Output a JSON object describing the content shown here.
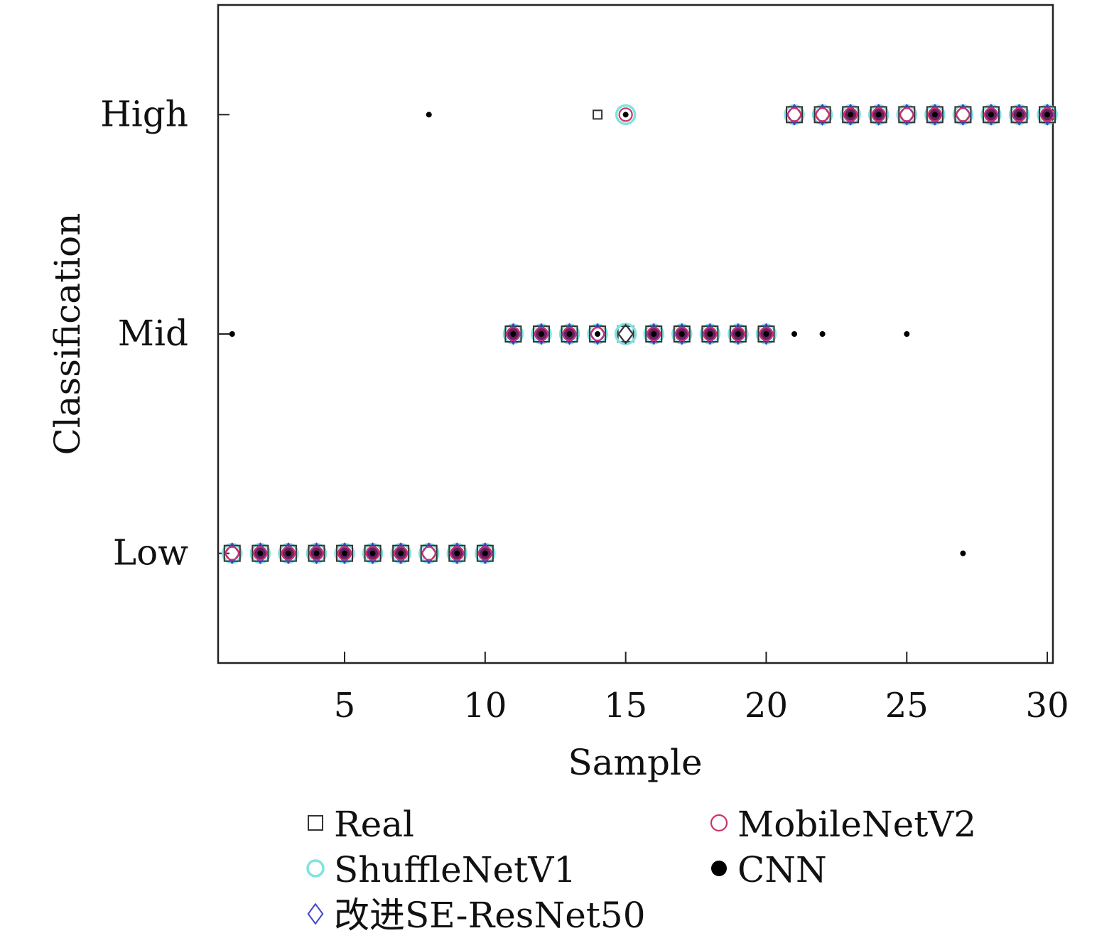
{
  "chart_data": {
    "type": "scatter",
    "xlabel": "Sample",
    "ylabel": "Classification",
    "xlim": [
      0.5,
      30.2
    ],
    "ylim": [
      -0.5,
      2.5
    ],
    "x_ticks": [
      5,
      10,
      15,
      20,
      25,
      30
    ],
    "x_tick_labels": [
      "5",
      "10",
      "15",
      "20",
      "25",
      "30"
    ],
    "y_tick_labels": [
      "Low",
      "Mid",
      "High"
    ],
    "y_tick_values": [
      0,
      1,
      2
    ],
    "grid": false,
    "legend_position": "bottom",
    "x": [
      1,
      2,
      3,
      4,
      5,
      6,
      7,
      8,
      9,
      10,
      11,
      12,
      13,
      14,
      15,
      16,
      17,
      18,
      19,
      20,
      21,
      22,
      23,
      24,
      25,
      26,
      27,
      28,
      29,
      30
    ],
    "series": [
      {
        "name": "Real",
        "marker": "square",
        "color": "#333333",
        "size": 11,
        "values": [
          0,
          0,
          0,
          0,
          0,
          0,
          0,
          0,
          0,
          0,
          1,
          1,
          1,
          1,
          1,
          1,
          1,
          1,
          1,
          1,
          2,
          2,
          2,
          2,
          2,
          2,
          2,
          2,
          2,
          2
        ]
      },
      {
        "name": "ShuffleNetV1",
        "marker": "circle",
        "color": "#7fe3e0",
        "size": 13,
        "values": [
          0,
          0,
          0,
          0,
          0,
          0,
          0,
          0,
          0,
          0,
          1,
          1,
          1,
          1,
          2,
          1,
          1,
          1,
          1,
          1,
          2,
          2,
          2,
          2,
          2,
          2,
          2,
          2,
          2,
          2
        ]
      },
      {
        "name": "改进SE-ResNet50",
        "marker": "diamond",
        "color": "#4444cc",
        "size": 12,
        "values": [
          0,
          0,
          0,
          0,
          0,
          0,
          0,
          0,
          0,
          0,
          1,
          1,
          1,
          1,
          1,
          1,
          1,
          1,
          1,
          1,
          2,
          2,
          2,
          2,
          2,
          2,
          2,
          2,
          2,
          2
        ]
      },
      {
        "name": "MobileNetV2",
        "marker": "open-circle",
        "color": "#cc3366",
        "size": 9,
        "values": [
          0,
          0,
          0,
          0,
          0,
          0,
          0,
          0,
          0,
          0,
          1,
          1,
          1,
          1,
          2,
          1,
          1,
          1,
          1,
          1,
          2,
          2,
          2,
          2,
          2,
          2,
          2,
          2,
          2,
          2
        ]
      },
      {
        "name": "CNN",
        "marker": "dot",
        "color": "#000000",
        "size": 4,
        "values": [
          1,
          0,
          0,
          0,
          0,
          0,
          0,
          2,
          0,
          0,
          1,
          1,
          1,
          1,
          2,
          1,
          1,
          1,
          1,
          1,
          1,
          1,
          2,
          2,
          1,
          2,
          0,
          2,
          2,
          2
        ]
      }
    ],
    "filled_purple_points": {
      "color": "#6a1f5e",
      "x": [
        2,
        3,
        4,
        5,
        6,
        7,
        9,
        10,
        11,
        12,
        13,
        16,
        17,
        18,
        19,
        20,
        23,
        24,
        26,
        28,
        29,
        30
      ]
    }
  },
  "legend": {
    "items": [
      {
        "label": "Real",
        "marker": "square",
        "color": "#333333"
      },
      {
        "label": "MobileNetV2",
        "marker": "open-circle",
        "color": "#cc3366"
      },
      {
        "label": "ShuffleNetV1",
        "marker": "circle",
        "color": "#7fe3e0"
      },
      {
        "label": "CNN",
        "marker": "dot",
        "color": "#000000"
      },
      {
        "label": "改进SE-ResNet50",
        "marker": "diamond",
        "color": "#4444cc"
      }
    ]
  }
}
